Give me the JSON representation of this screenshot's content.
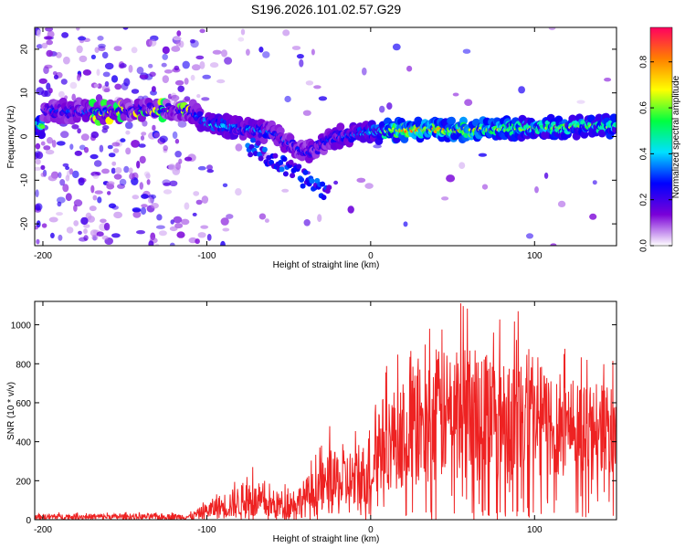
{
  "title": "S196.2026.101.02.57.G29",
  "chart_data": [
    {
      "type": "heatmap",
      "name": "spectrogram",
      "xlabel": "Height of straight line (km)",
      "ylabel": "Frequency (Hz)",
      "xlim": [
        -205,
        150
      ],
      "ylim": [
        -25,
        25
      ],
      "xticks": [
        -200,
        -100,
        0,
        100
      ],
      "yticks": [
        -20,
        -10,
        0,
        10,
        20
      ],
      "colorbar": {
        "label": "Normalized spectral amplitude",
        "range": [
          0.0,
          0.95
        ],
        "ticks": [
          0.0,
          0.2,
          0.4,
          0.6,
          0.8
        ],
        "tick_labels": [
          "0.0",
          "0.2",
          "0.4",
          "0.6",
          "0.8"
        ],
        "colors": [
          "#ffffff",
          "#7a00d8",
          "#0000ff",
          "#00e0ff",
          "#00ff40",
          "#ffff00",
          "#ff7f00",
          "#ff0060"
        ]
      },
      "ridge": [
        {
          "x": -200,
          "freq": 6,
          "amp": 0.25
        },
        {
          "x": -160,
          "freq": 5.5,
          "amp": 0.3
        },
        {
          "x": -150,
          "freq": 6,
          "amp": 0.25
        },
        {
          "x": -110,
          "freq": 6,
          "amp": 0.25
        },
        {
          "x": -100,
          "freq": 3,
          "amp": 0.4
        },
        {
          "x": -80,
          "freq": 2,
          "amp": 0.35
        },
        {
          "x": -60,
          "freq": 1,
          "amp": 0.3
        },
        {
          "x": -40,
          "freq": -4,
          "amp": 0.25
        },
        {
          "x": -20,
          "freq": 0,
          "amp": 0.3
        },
        {
          "x": 0,
          "freq": 1,
          "amp": 0.4
        },
        {
          "x": 20,
          "freq": 1.5,
          "amp": 0.75
        },
        {
          "x": 60,
          "freq": 1.5,
          "amp": 0.7
        },
        {
          "x": 100,
          "freq": 2,
          "amp": 0.55
        },
        {
          "x": 150,
          "freq": 2.5,
          "amp": 0.55
        }
      ]
    },
    {
      "type": "line",
      "name": "snr",
      "xlabel": "Height of straight line (km)",
      "ylabel": "SNR (10 * v/v)",
      "xlim": [
        -205,
        150
      ],
      "ylim": [
        0,
        1120
      ],
      "xticks": [
        -200,
        -100,
        0,
        100
      ],
      "yticks": [
        0,
        200,
        400,
        600,
        800,
        1000
      ],
      "color": "#ee2222",
      "envelope": [
        {
          "x": -205,
          "mean": 15,
          "spread": 18
        },
        {
          "x": -110,
          "mean": 15,
          "spread": 20
        },
        {
          "x": -95,
          "mean": 60,
          "spread": 70
        },
        {
          "x": -75,
          "mean": 100,
          "spread": 120
        },
        {
          "x": -60,
          "mean": 70,
          "spread": 90
        },
        {
          "x": -45,
          "mean": 90,
          "spread": 100
        },
        {
          "x": -25,
          "mean": 180,
          "spread": 200
        },
        {
          "x": -5,
          "mean": 200,
          "spread": 230
        },
        {
          "x": 5,
          "mean": 380,
          "spread": 300
        },
        {
          "x": 30,
          "mean": 480,
          "spread": 380
        },
        {
          "x": 55,
          "mean": 560,
          "spread": 450
        },
        {
          "x": 80,
          "mean": 520,
          "spread": 420
        },
        {
          "x": 100,
          "mean": 500,
          "spread": 380
        },
        {
          "x": 125,
          "mean": 480,
          "spread": 320
        },
        {
          "x": 150,
          "mean": 460,
          "spread": 280
        }
      ],
      "peaks": [
        {
          "x": 55,
          "y": 1110
        },
        {
          "x": 90,
          "y": 1070
        },
        {
          "x": 36,
          "y": 980
        },
        {
          "x": 75,
          "y": 960
        },
        {
          "x": 118,
          "y": 850
        },
        {
          "x": 132,
          "y": 820
        },
        {
          "x": -25,
          "y": 480
        },
        {
          "x": -72,
          "y": 270
        },
        {
          "x": -30,
          "y": 380
        },
        {
          "x": 3,
          "y": 590
        },
        {
          "x": 0,
          "y": 20
        },
        {
          "x": 148,
          "y": 20
        }
      ]
    }
  ]
}
